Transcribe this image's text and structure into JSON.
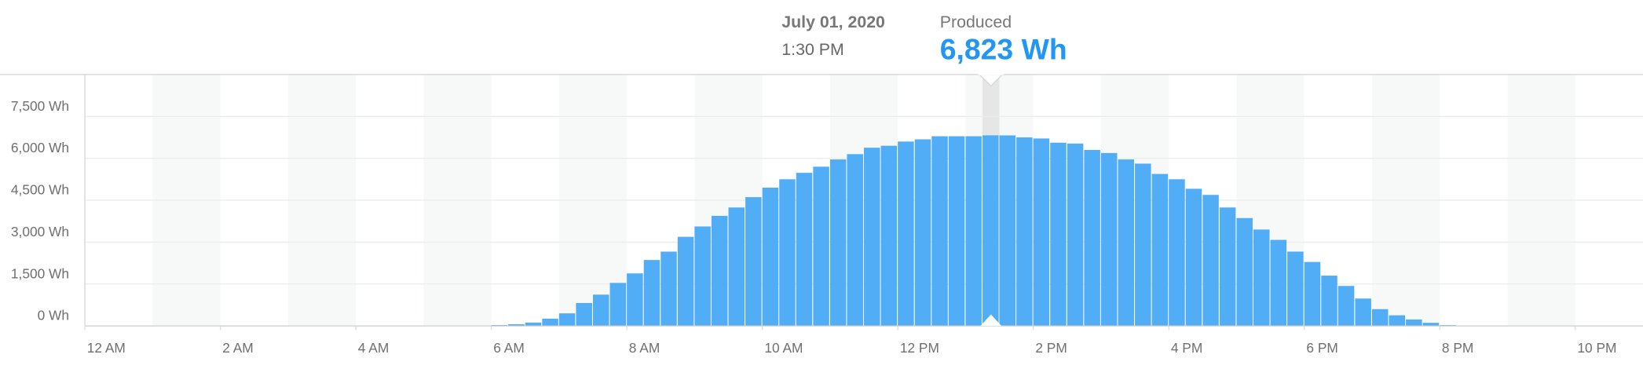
{
  "chart_data": {
    "type": "bar",
    "series": [
      {
        "name": "Produced",
        "color": "#51adf6",
        "values": [
          30,
          60,
          120,
          260,
          450,
          820,
          1120,
          1540,
          1880,
          2360,
          2660,
          3190,
          3560,
          3940,
          4240,
          4610,
          4950,
          5250,
          5480,
          5700,
          5960,
          6150,
          6380,
          6450,
          6600,
          6680,
          6790,
          6790,
          6790,
          6823,
          6820,
          6750,
          6710,
          6560,
          6530,
          6300,
          6190,
          5960,
          5810,
          5440,
          5250,
          4910,
          4690,
          4240,
          3860,
          3450,
          3080,
          2660,
          2290,
          1800,
          1430,
          980,
          600,
          380,
          230,
          110,
          30
        ]
      }
    ],
    "x": [
      6.25,
      6.5,
      6.75,
      7,
      7.25,
      7.5,
      7.75,
      8,
      8.25,
      8.5,
      8.75,
      9,
      9.25,
      9.5,
      9.75,
      10,
      10.25,
      10.5,
      10.75,
      11,
      11.25,
      11.5,
      11.75,
      12,
      12.25,
      12.5,
      12.75,
      13,
      13.25,
      13.5,
      13.75,
      14,
      14.25,
      14.5,
      14.75,
      15,
      15.25,
      15.5,
      15.75,
      16,
      16.25,
      16.5,
      16.75,
      17,
      17.25,
      17.5,
      17.75,
      18,
      18.25,
      18.5,
      18.75,
      19,
      19.25,
      19.5,
      19.75,
      20,
      20.25
    ],
    "xlim": [
      0,
      23
    ],
    "xticks": [
      {
        "value": 0,
        "label": "12 AM"
      },
      {
        "value": 2,
        "label": "2 AM"
      },
      {
        "value": 4,
        "label": "4 AM"
      },
      {
        "value": 6,
        "label": "6 AM"
      },
      {
        "value": 8,
        "label": "8 AM"
      },
      {
        "value": 10,
        "label": "10 AM"
      },
      {
        "value": 12,
        "label": "12 PM"
      },
      {
        "value": 14,
        "label": "2 PM"
      },
      {
        "value": 16,
        "label": "4 PM"
      },
      {
        "value": 18,
        "label": "6 PM"
      },
      {
        "value": 20,
        "label": "8 PM"
      },
      {
        "value": 22,
        "label": "10 PM"
      }
    ],
    "ylim": [
      0,
      9000
    ],
    "yticks": [
      {
        "value": 0,
        "label": "0 Wh"
      },
      {
        "value": 1500,
        "label": "1,500 Wh"
      },
      {
        "value": 3000,
        "label": "3,000 Wh"
      },
      {
        "value": 4500,
        "label": "4,500 Wh"
      },
      {
        "value": 6000,
        "label": "6,000 Wh"
      },
      {
        "value": 7500,
        "label": "7,500 Wh"
      }
    ],
    "grid": true,
    "tooltip": {
      "date": "July 01, 2020",
      "time": "1:30 PM",
      "value_label": "6,823 Wh",
      "x": 13.5
    }
  }
}
